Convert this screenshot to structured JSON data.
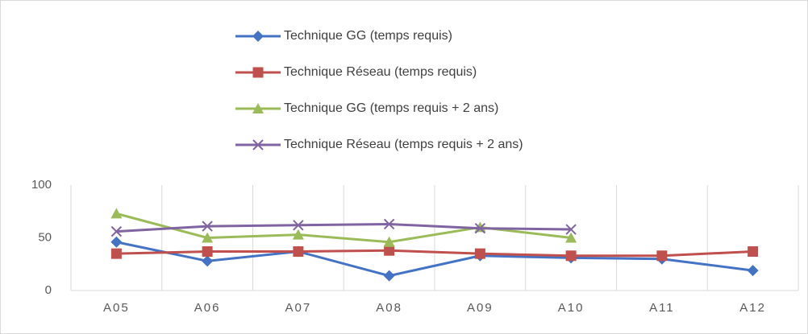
{
  "chart_data": {
    "type": "line",
    "categories": [
      "A05",
      "A06",
      "A07",
      "A08",
      "A09",
      "A10",
      "A11",
      "A12"
    ],
    "series": [
      {
        "name": "Technique GG (temps requis)",
        "color": "#4472c4",
        "marker": "diamond",
        "values": [
          46,
          28,
          37,
          14,
          33,
          31,
          30,
          19
        ]
      },
      {
        "name": "Technique Réseau (temps requis)",
        "color": "#c0504d",
        "marker": "square",
        "values": [
          35,
          37,
          37,
          38,
          35,
          33,
          33,
          37
        ]
      },
      {
        "name": "Technique GG (temps requis + 2 ans)",
        "color": "#9bbb59",
        "marker": "triangle",
        "values": [
          73,
          50,
          53,
          46,
          60,
          50,
          null,
          null
        ]
      },
      {
        "name": "Technique Réseau (temps requis + 2 ans)",
        "color": "#8064a2",
        "marker": "x",
        "values": [
          56,
          61,
          62,
          63,
          59,
          58,
          null,
          null
        ]
      }
    ],
    "ylim": [
      0,
      100
    ],
    "yticks": [
      0,
      50,
      100
    ],
    "grid": "x",
    "legend": "top"
  }
}
